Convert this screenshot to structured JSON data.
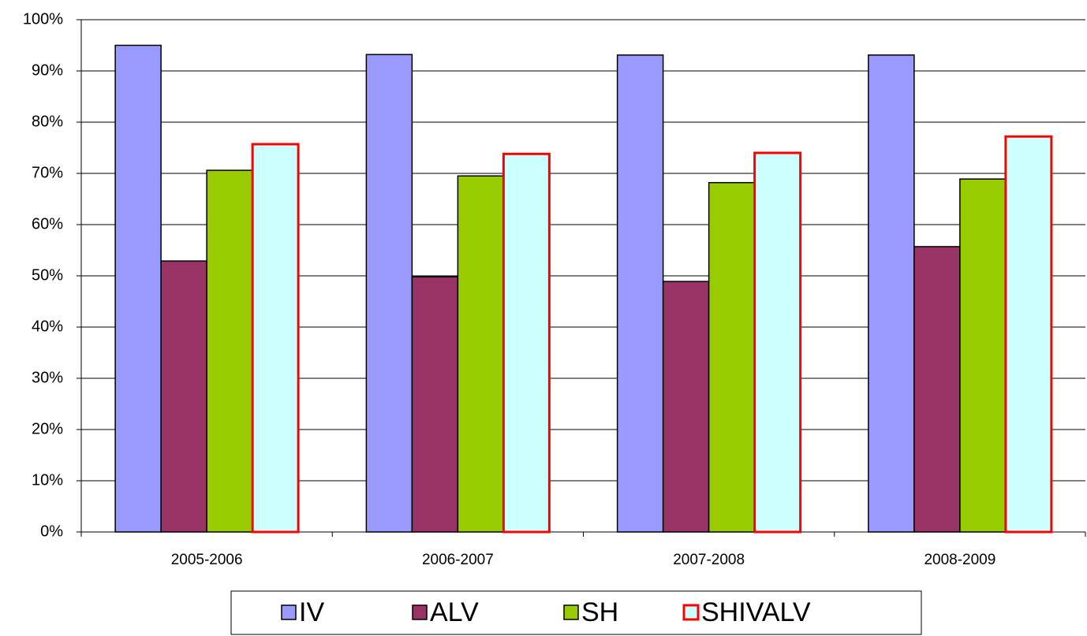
{
  "chart_data": {
    "type": "bar",
    "categories": [
      "2005-2006",
      "2006-2007",
      "2007-2008",
      "2008-2009"
    ],
    "series": [
      {
        "name": "IV",
        "color": "#9999ff",
        "edgecolor": "#000000",
        "values": [
          95,
          93.2,
          93.1,
          93.1
        ]
      },
      {
        "name": "ALV",
        "color": "#993366",
        "edgecolor": "#000000",
        "values": [
          52.9,
          49.8,
          48.9,
          55.7
        ]
      },
      {
        "name": "SH",
        "color": "#99cc00",
        "edgecolor": "#000000",
        "values": [
          70.6,
          69.5,
          68.2,
          68.9
        ]
      },
      {
        "name": "SHIVALV",
        "color": "#ccffff",
        "edgecolor": "#ff0000",
        "values": [
          75.7,
          73.8,
          74,
          77.2
        ]
      }
    ],
    "ylim": [
      0,
      100
    ],
    "yticks": [
      {
        "value": 0,
        "label": "0%"
      },
      {
        "value": 10,
        "label": "10%"
      },
      {
        "value": 20,
        "label": "20%"
      },
      {
        "value": 30,
        "label": "30%"
      },
      {
        "value": 40,
        "label": "40%"
      },
      {
        "value": 50,
        "label": "50%"
      },
      {
        "value": 60,
        "label": "60%"
      },
      {
        "value": 70,
        "label": "70%"
      },
      {
        "value": 80,
        "label": "80%"
      },
      {
        "value": 90,
        "label": "90%"
      },
      {
        "value": 100,
        "label": "100%"
      }
    ],
    "grid": true,
    "legend": "bottom"
  }
}
